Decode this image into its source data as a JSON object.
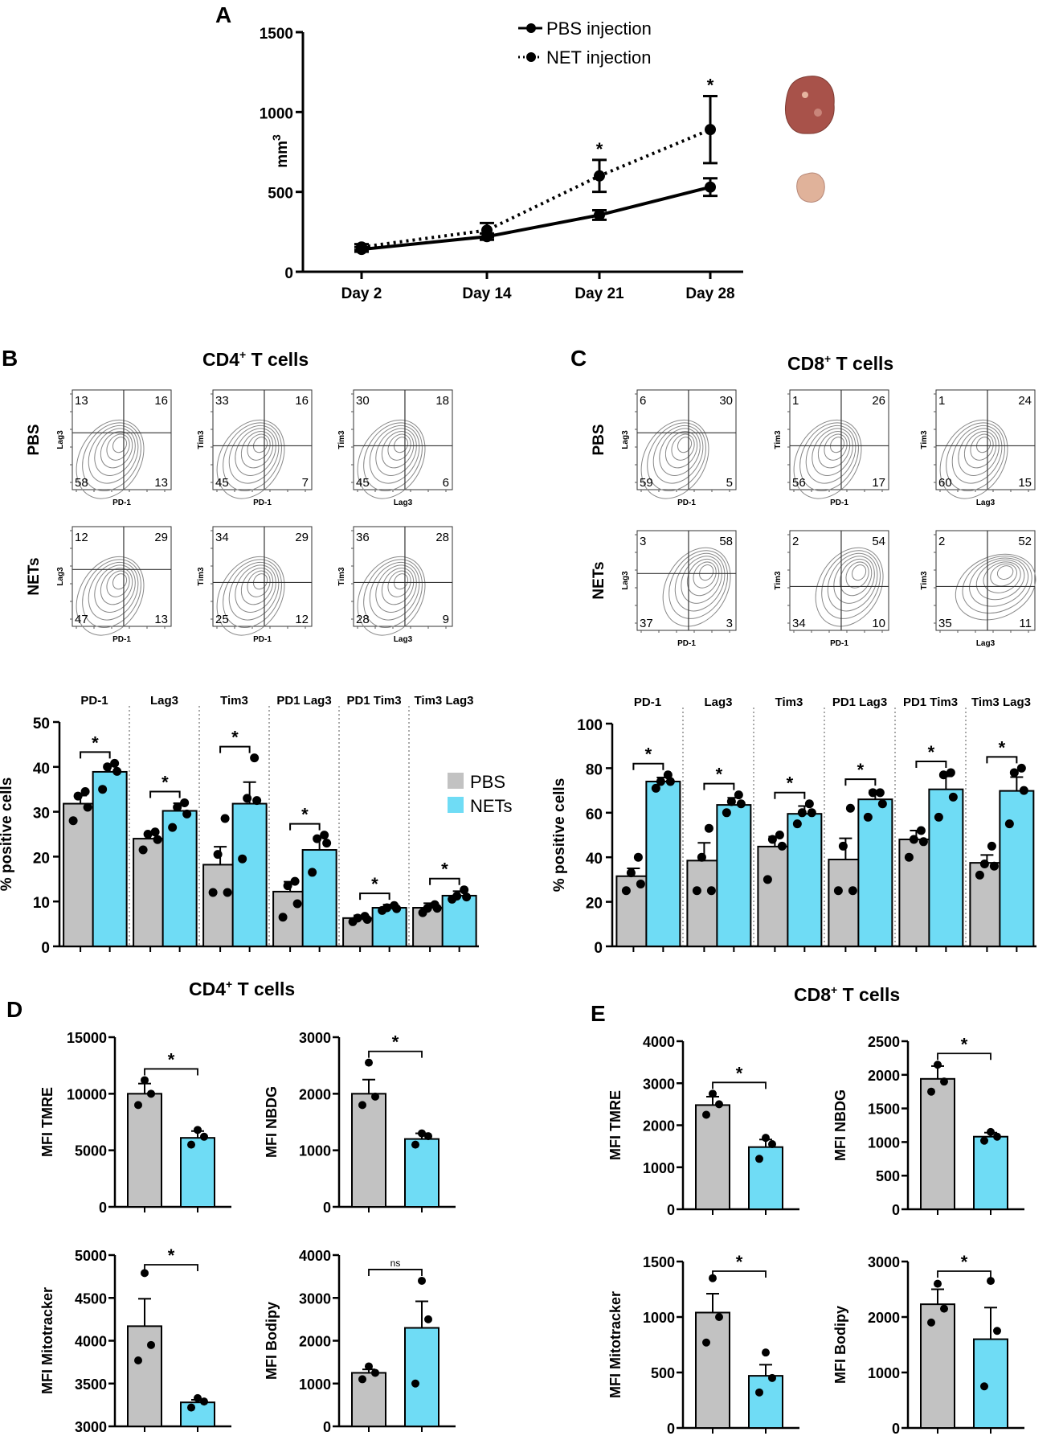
{
  "figure": {
    "panel_labels": [
      "A",
      "B",
      "C",
      "D",
      "E"
    ],
    "colors": {
      "pbs": "#c2c2c2",
      "nets": "#6fdcf5",
      "line": "#000000"
    },
    "tumor_images": [
      {
        "name": "large-tumor-photo",
        "fill": "#a8524a"
      },
      {
        "name": "small-tumor-photo",
        "fill": "#e0b29a"
      }
    ],
    "flow": {
      "b_title_main": "CD4",
      "b_title_sup": "+",
      "b_title_rest": " T cells",
      "c_title_main": "CD8",
      "c_title_sup": "+",
      "c_title_rest": " T cells",
      "row_labels": [
        "PBS",
        "NETs"
      ],
      "b_plots": [
        {
          "x": "PD-1",
          "y": "Lag3",
          "q": [
            "13",
            "16",
            "58",
            "13"
          ]
        },
        {
          "x": "PD-1",
          "y": "Tim3",
          "q": [
            "33",
            "16",
            "45",
            "7"
          ]
        },
        {
          "x": "Lag3",
          "y": "Tim3",
          "q": [
            "30",
            "18",
            "45",
            "6"
          ]
        },
        {
          "x": "PD-1",
          "y": "Lag3",
          "q": [
            "12",
            "29",
            "47",
            "13"
          ]
        },
        {
          "x": "PD-1",
          "y": "Tim3",
          "q": [
            "34",
            "29",
            "25",
            "12"
          ]
        },
        {
          "x": "Lag3",
          "y": "Tim3",
          "q": [
            "36",
            "28",
            "28",
            "9"
          ]
        }
      ],
      "c_plots": [
        {
          "x": "PD-1",
          "y": "Lag3",
          "q": [
            "6",
            "30",
            "59",
            "5"
          ]
        },
        {
          "x": "PD-1",
          "y": "Tim3",
          "q": [
            "1",
            "26",
            "56",
            "17"
          ]
        },
        {
          "x": "Lag3",
          "y": "Tim3",
          "q": [
            "1",
            "24",
            "60",
            "15"
          ]
        },
        {
          "x": "PD-1",
          "y": "Lag3",
          "q": [
            "3",
            "58",
            "37",
            "3"
          ]
        },
        {
          "x": "PD-1",
          "y": "Tim3",
          "q": [
            "2",
            "54",
            "34",
            "10"
          ]
        },
        {
          "x": "Lag3",
          "y": "Tim3",
          "q": [
            "2",
            "52",
            "35",
            "11"
          ]
        }
      ]
    },
    "legend": {
      "pbs": "PBS",
      "nets": "NETs"
    }
  },
  "chart_data": [
    {
      "id": "A",
      "type": "line",
      "categories": [
        "Day 2",
        "Day 14",
        "Day 21",
        "Day 28"
      ],
      "series": [
        {
          "name": "PBS injection",
          "values": [
            140,
            220,
            355,
            530
          ],
          "errors": [
            15,
            20,
            30,
            55
          ],
          "style": "solid"
        },
        {
          "name": "NET injection",
          "values": [
            155,
            260,
            600,
            890
          ],
          "errors": [
            18,
            45,
            100,
            210
          ],
          "style": "dotted"
        }
      ],
      "significance": [
        "",
        "",
        "*",
        "*"
      ],
      "ylabel": "mm",
      "ylabel_sup": "3",
      "ylim": [
        0,
        1500
      ],
      "yticks": [
        0,
        500,
        1000,
        1500
      ]
    },
    {
      "id": "B-bar",
      "type": "bar",
      "title": "",
      "categories": [
        "PD-1",
        "Lag3",
        "Tim3",
        "PD1 Lag3",
        "PD1 Tim3",
        "Tim3 Lag3"
      ],
      "series": [
        {
          "name": "PBS",
          "values": [
            31.8,
            24.0,
            18.2,
            12.2,
            6.3,
            8.6
          ],
          "errors": [
            1.8,
            1.2,
            4.0,
            2.2,
            0.6,
            1.0
          ],
          "points": [
            [
              28,
              31,
              33.5,
              34.5
            ],
            [
              21.5,
              23.8,
              25.0,
              25.5
            ],
            [
              12,
              12,
              20.5,
              28.5
            ],
            [
              6.5,
              9.5,
              13.5,
              14.5
            ],
            [
              5.5,
              6,
              6.3,
              6.7
            ],
            [
              7.5,
              8.5,
              8.5,
              9.3
            ]
          ]
        },
        {
          "name": "NETs",
          "values": [
            38.9,
            30.2,
            31.8,
            21.5,
            8.6,
            11.3
          ],
          "errors": [
            1.5,
            1.7,
            4.8,
            2.8,
            0.7,
            1.0
          ],
          "points": [
            [
              35,
              39,
              40,
              40.8
            ],
            [
              26.5,
              29.5,
              31,
              32
            ],
            [
              19.5,
              32.5,
              33,
              42
            ],
            [
              16.5,
              23,
              24,
              24.8
            ],
            [
              8,
              8.4,
              8.6,
              9.1
            ],
            [
              10.5,
              11,
              11.2,
              12.6
            ]
          ]
        }
      ],
      "significance": [
        "*",
        "*",
        "*",
        "*",
        "*",
        "*"
      ],
      "ylabel": "% positive cells",
      "ylim": [
        0,
        50
      ],
      "yticks": [
        0,
        10,
        20,
        30,
        40,
        50
      ]
    },
    {
      "id": "C-bar",
      "type": "bar",
      "categories": [
        "PD-1",
        "Lag3",
        "Tim3",
        "PD1 Lag3",
        "PD1 Tim3",
        "Tim3 Lag3"
      ],
      "series": [
        {
          "name": "PBS",
          "values": [
            31.5,
            38.5,
            44.8,
            39.0,
            48.0,
            37.5
          ],
          "errors": [
            3.5,
            8.0,
            4.5,
            9.5,
            4.0,
            3.5
          ],
          "points": [
            [
              25,
              28,
              33,
              40
            ],
            [
              25,
              25,
              40,
              53
            ],
            [
              30,
              45,
              48,
              50
            ],
            [
              25,
              25,
              45,
              62
            ],
            [
              40,
              47,
              48,
              52
            ],
            [
              32,
              36,
              37,
              45
            ]
          ]
        },
        {
          "name": "NETs",
          "values": [
            74.0,
            63.5,
            59.5,
            66.0,
            70.5,
            69.8
          ],
          "errors": [
            1.8,
            3.2,
            3.5,
            4.0,
            5.8,
            6.2
          ],
          "points": [
            [
              71,
              74,
              74,
              77
            ],
            [
              60,
              64,
              65,
              68
            ],
            [
              55,
              60,
              60,
              64
            ],
            [
              58,
              64,
              69,
              69
            ],
            [
              58,
              67,
              77,
              78
            ],
            [
              55,
              70,
              78,
              80
            ]
          ]
        }
      ],
      "significance": [
        "*",
        "*",
        "*",
        "*",
        "*",
        "*"
      ],
      "ylabel": "% positive cells",
      "ylim": [
        0,
        100
      ],
      "yticks": [
        0,
        20,
        40,
        60,
        80,
        100
      ]
    },
    {
      "id": "D1",
      "type": "bar",
      "title": "CD4+ T cells",
      "categories": [
        "PBS",
        "NETs"
      ],
      "values": [
        10000,
        6100
      ],
      "errors": [
        900,
        600
      ],
      "points": [
        [
          9000,
          10000,
          11200
        ],
        [
          5500,
          6200,
          6800
        ]
      ],
      "significance": "*",
      "ylabel": "MFI TMRE",
      "ylim": [
        0,
        15000
      ],
      "yticks": [
        0,
        5000,
        10000,
        15000
      ]
    },
    {
      "id": "D2",
      "type": "bar",
      "categories": [
        "PBS",
        "NETs"
      ],
      "values": [
        2000,
        1200
      ],
      "errors": [
        250,
        100
      ],
      "points": [
        [
          1800,
          1950,
          2550
        ],
        [
          1100,
          1250,
          1300
        ]
      ],
      "significance": "*",
      "ylabel": "MFI NBDG",
      "ylim": [
        0,
        3000
      ],
      "yticks": [
        0,
        1000,
        2000,
        3000
      ]
    },
    {
      "id": "D3",
      "type": "bar",
      "categories": [
        "PBS",
        "NETs"
      ],
      "values": [
        4170,
        3280
      ],
      "errors": [
        320,
        30
      ],
      "points": [
        [
          3770,
          3950,
          4790
        ],
        [
          3220,
          3290,
          3330
        ]
      ],
      "significance": "*",
      "ylabel": "MFI Mitotracker",
      "ylim": [
        3000,
        5000
      ],
      "yticks": [
        3000,
        3500,
        4000,
        4500,
        5000
      ]
    },
    {
      "id": "D4",
      "type": "bar",
      "categories": [
        "PBS",
        "NETs"
      ],
      "values": [
        1250,
        2300
      ],
      "errors": [
        80,
        620
      ],
      "points": [
        [
          1100,
          1250,
          1400
        ],
        [
          1000,
          2500,
          3400
        ]
      ],
      "significance": "ns",
      "ylabel": "MFI Bodipy",
      "ylim": [
        0,
        4000
      ],
      "yticks": [
        0,
        1000,
        2000,
        3000,
        4000
      ]
    },
    {
      "id": "E1",
      "type": "bar",
      "title": "CD8+ T cells",
      "categories": [
        "PBS",
        "NETs"
      ],
      "values": [
        2480,
        1480
      ],
      "errors": [
        200,
        180
      ],
      "points": [
        [
          2250,
          2500,
          2750
        ],
        [
          1200,
          1550,
          1700
        ]
      ],
      "significance": "*",
      "ylabel": "MFI TMRE",
      "ylim": [
        0,
        4000
      ],
      "yticks": [
        0,
        1000,
        2000,
        3000,
        4000
      ]
    },
    {
      "id": "E2",
      "type": "bar",
      "categories": [
        "PBS",
        "NETs"
      ],
      "values": [
        1940,
        1080
      ],
      "errors": [
        190,
        60
      ],
      "points": [
        [
          1750,
          1900,
          2150
        ],
        [
          1020,
          1080,
          1150
        ]
      ],
      "significance": "*",
      "ylabel": "MFI NBDG",
      "ylim": [
        0,
        2500
      ],
      "yticks": [
        0,
        500,
        1000,
        1500,
        2000,
        2500
      ]
    },
    {
      "id": "E3",
      "type": "bar",
      "categories": [
        "PBS",
        "NETs"
      ],
      "values": [
        1040,
        470
      ],
      "errors": [
        170,
        100
      ],
      "points": [
        [
          770,
          1000,
          1350
        ],
        [
          320,
          450,
          680
        ]
      ],
      "significance": "*",
      "ylabel": "MFI Mitotracker",
      "ylim": [
        0,
        1500
      ],
      "yticks": [
        0,
        500,
        1000,
        1500
      ]
    },
    {
      "id": "E4",
      "type": "bar",
      "categories": [
        "PBS",
        "NETs"
      ],
      "values": [
        2230,
        1600
      ],
      "errors": [
        270,
        570
      ],
      "points": [
        [
          1900,
          2150,
          2600
        ],
        [
          750,
          1750,
          2650
        ]
      ],
      "significance": "*",
      "ylabel": "MFI Bodipy",
      "ylim": [
        0,
        3000
      ],
      "yticks": [
        0,
        1000,
        2000,
        3000
      ]
    }
  ]
}
